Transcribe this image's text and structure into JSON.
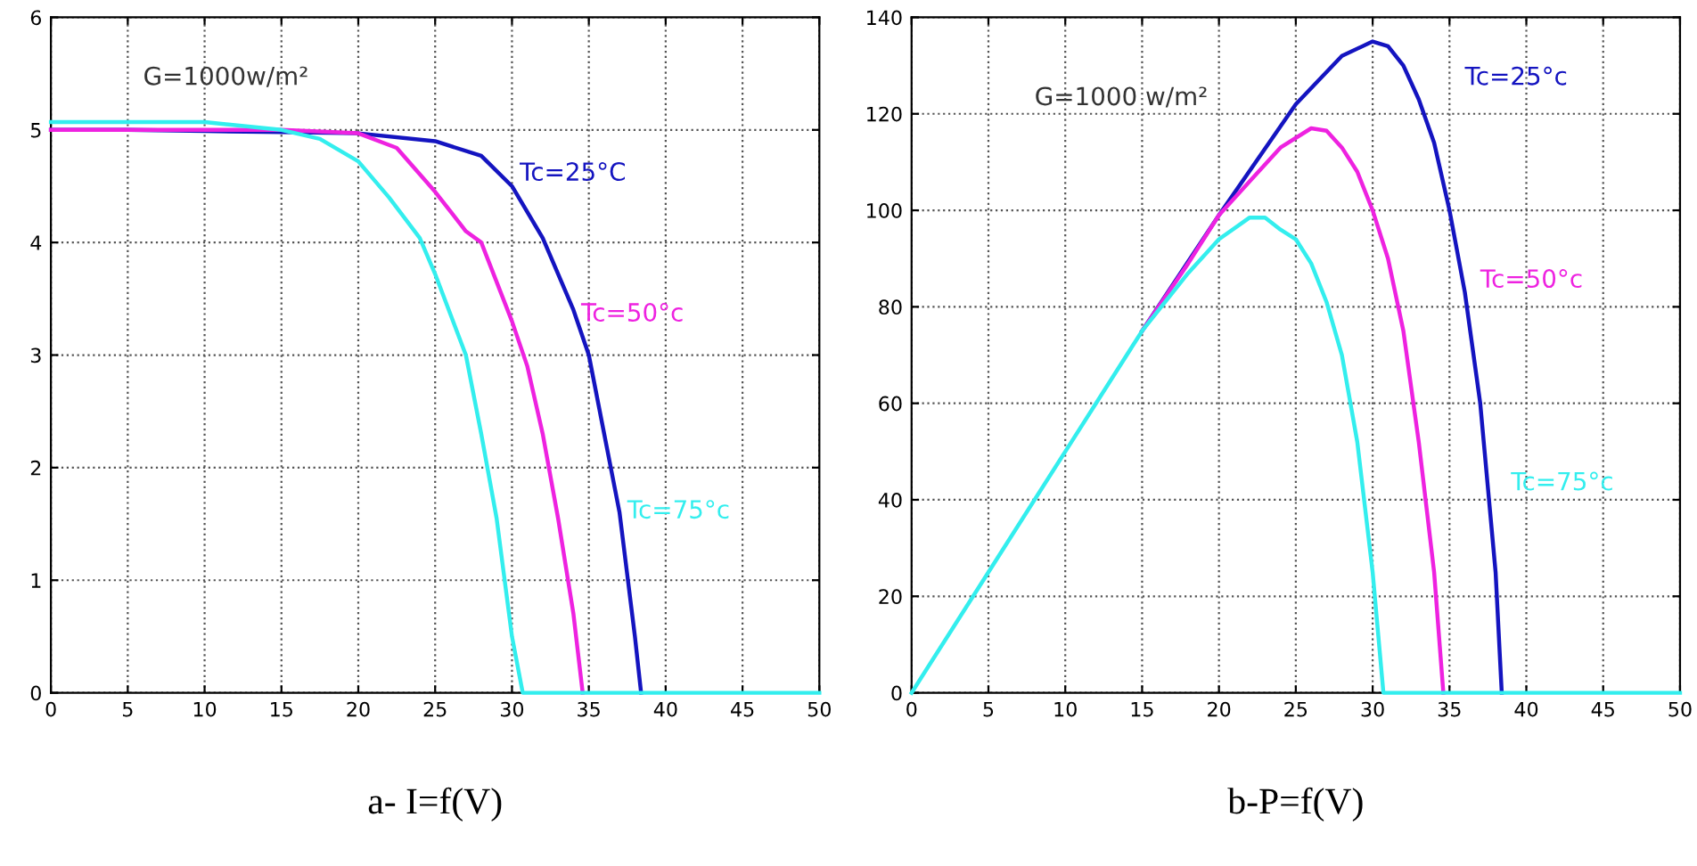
{
  "chart_data": [
    {
      "type": "line",
      "title": "a- I=f(V)",
      "xlim": [
        0,
        50
      ],
      "ylim": [
        0,
        6
      ],
      "xticks": [
        0,
        5,
        10,
        15,
        20,
        25,
        30,
        35,
        40,
        45,
        50
      ],
      "yticks": [
        0,
        1,
        2,
        3,
        4,
        5,
        6
      ],
      "grid": true,
      "line_style": "solid",
      "annotations": [
        "G=1000w/m²",
        {
          "text": "Tc=25°C",
          "x": 30.5,
          "y": 4.55
        },
        {
          "text": "Tc=50°c",
          "x": 34.5,
          "y": 3.3
        },
        {
          "text": "Tc=75°c",
          "x": 37.5,
          "y": 1.55
        }
      ],
      "series": [
        {
          "color": "#1414c0",
          "x": [
            0,
            5,
            10,
            15,
            20,
            25,
            28,
            30,
            32,
            34,
            35,
            36,
            37,
            38,
            38.4
          ],
          "values": [
            5.0,
            5.0,
            4.99,
            4.98,
            4.97,
            4.9,
            4.77,
            4.5,
            4.04,
            3.4,
            3.0,
            2.3,
            1.6,
            0.5,
            0
          ]
        },
        {
          "color": "#ee22e0",
          "x": [
            0,
            5,
            10,
            15,
            20,
            22.5,
            25,
            27,
            28,
            30,
            31,
            32,
            33,
            34,
            34.6
          ],
          "values": [
            5.0,
            5.0,
            5.0,
            5.0,
            4.97,
            4.84,
            4.45,
            4.1,
            4.0,
            3.3,
            2.9,
            2.3,
            1.55,
            0.7,
            0
          ]
        },
        {
          "color": "#33eeee",
          "x": [
            0,
            5,
            10,
            15,
            17.5,
            20,
            22,
            24,
            25,
            26,
            27,
            28,
            29,
            30,
            30.7,
            40,
            45,
            50
          ],
          "values": [
            5.07,
            5.07,
            5.07,
            5.0,
            4.92,
            4.72,
            4.4,
            4.04,
            3.72,
            3.36,
            3.0,
            2.3,
            1.55,
            0.5,
            0,
            0,
            0,
            0
          ]
        }
      ]
    },
    {
      "type": "line",
      "title": "b-P=f(V)",
      "xlim": [
        0,
        50
      ],
      "ylim": [
        0,
        140
      ],
      "xticks": [
        0,
        5,
        10,
        15,
        20,
        25,
        30,
        35,
        40,
        45,
        50
      ],
      "yticks": [
        0,
        20,
        40,
        60,
        80,
        100,
        120,
        140
      ],
      "grid": true,
      "line_style": "solid",
      "annotations": [
        "G=1000 w/m²",
        "Tc=25°c",
        "Tc=50°c",
        "Tc=75°c"
      ],
      "series": [
        {
          "color": "#1414c0",
          "x": [
            15,
            20,
            25,
            28,
            30,
            31,
            32,
            33,
            34,
            35,
            36,
            37,
            38,
            38.4
          ],
          "values": [
            75,
            99,
            122,
            132,
            135,
            134,
            130,
            123,
            114,
            100,
            83,
            60,
            25,
            0
          ]
        },
        {
          "color": "#ee22e0",
          "x": [
            15,
            18,
            20,
            22,
            24,
            26,
            27,
            28,
            29,
            30,
            31,
            32,
            33,
            34,
            34.6
          ],
          "values": [
            75,
            89,
            99,
            106,
            113,
            117,
            116.5,
            113,
            108,
            100,
            90,
            75,
            52,
            25,
            0
          ]
        },
        {
          "color": "#33eeee",
          "x": [
            0,
            5,
            10,
            15,
            18,
            20,
            22,
            23,
            24,
            25,
            26,
            27,
            28,
            29,
            30,
            30.7,
            40,
            45,
            50
          ],
          "values": [
            0,
            25,
            50,
            75,
            87,
            94,
            98.5,
            98.5,
            96,
            94,
            89,
            81,
            70,
            52,
            25,
            0,
            0,
            0,
            0
          ]
        }
      ]
    }
  ]
}
